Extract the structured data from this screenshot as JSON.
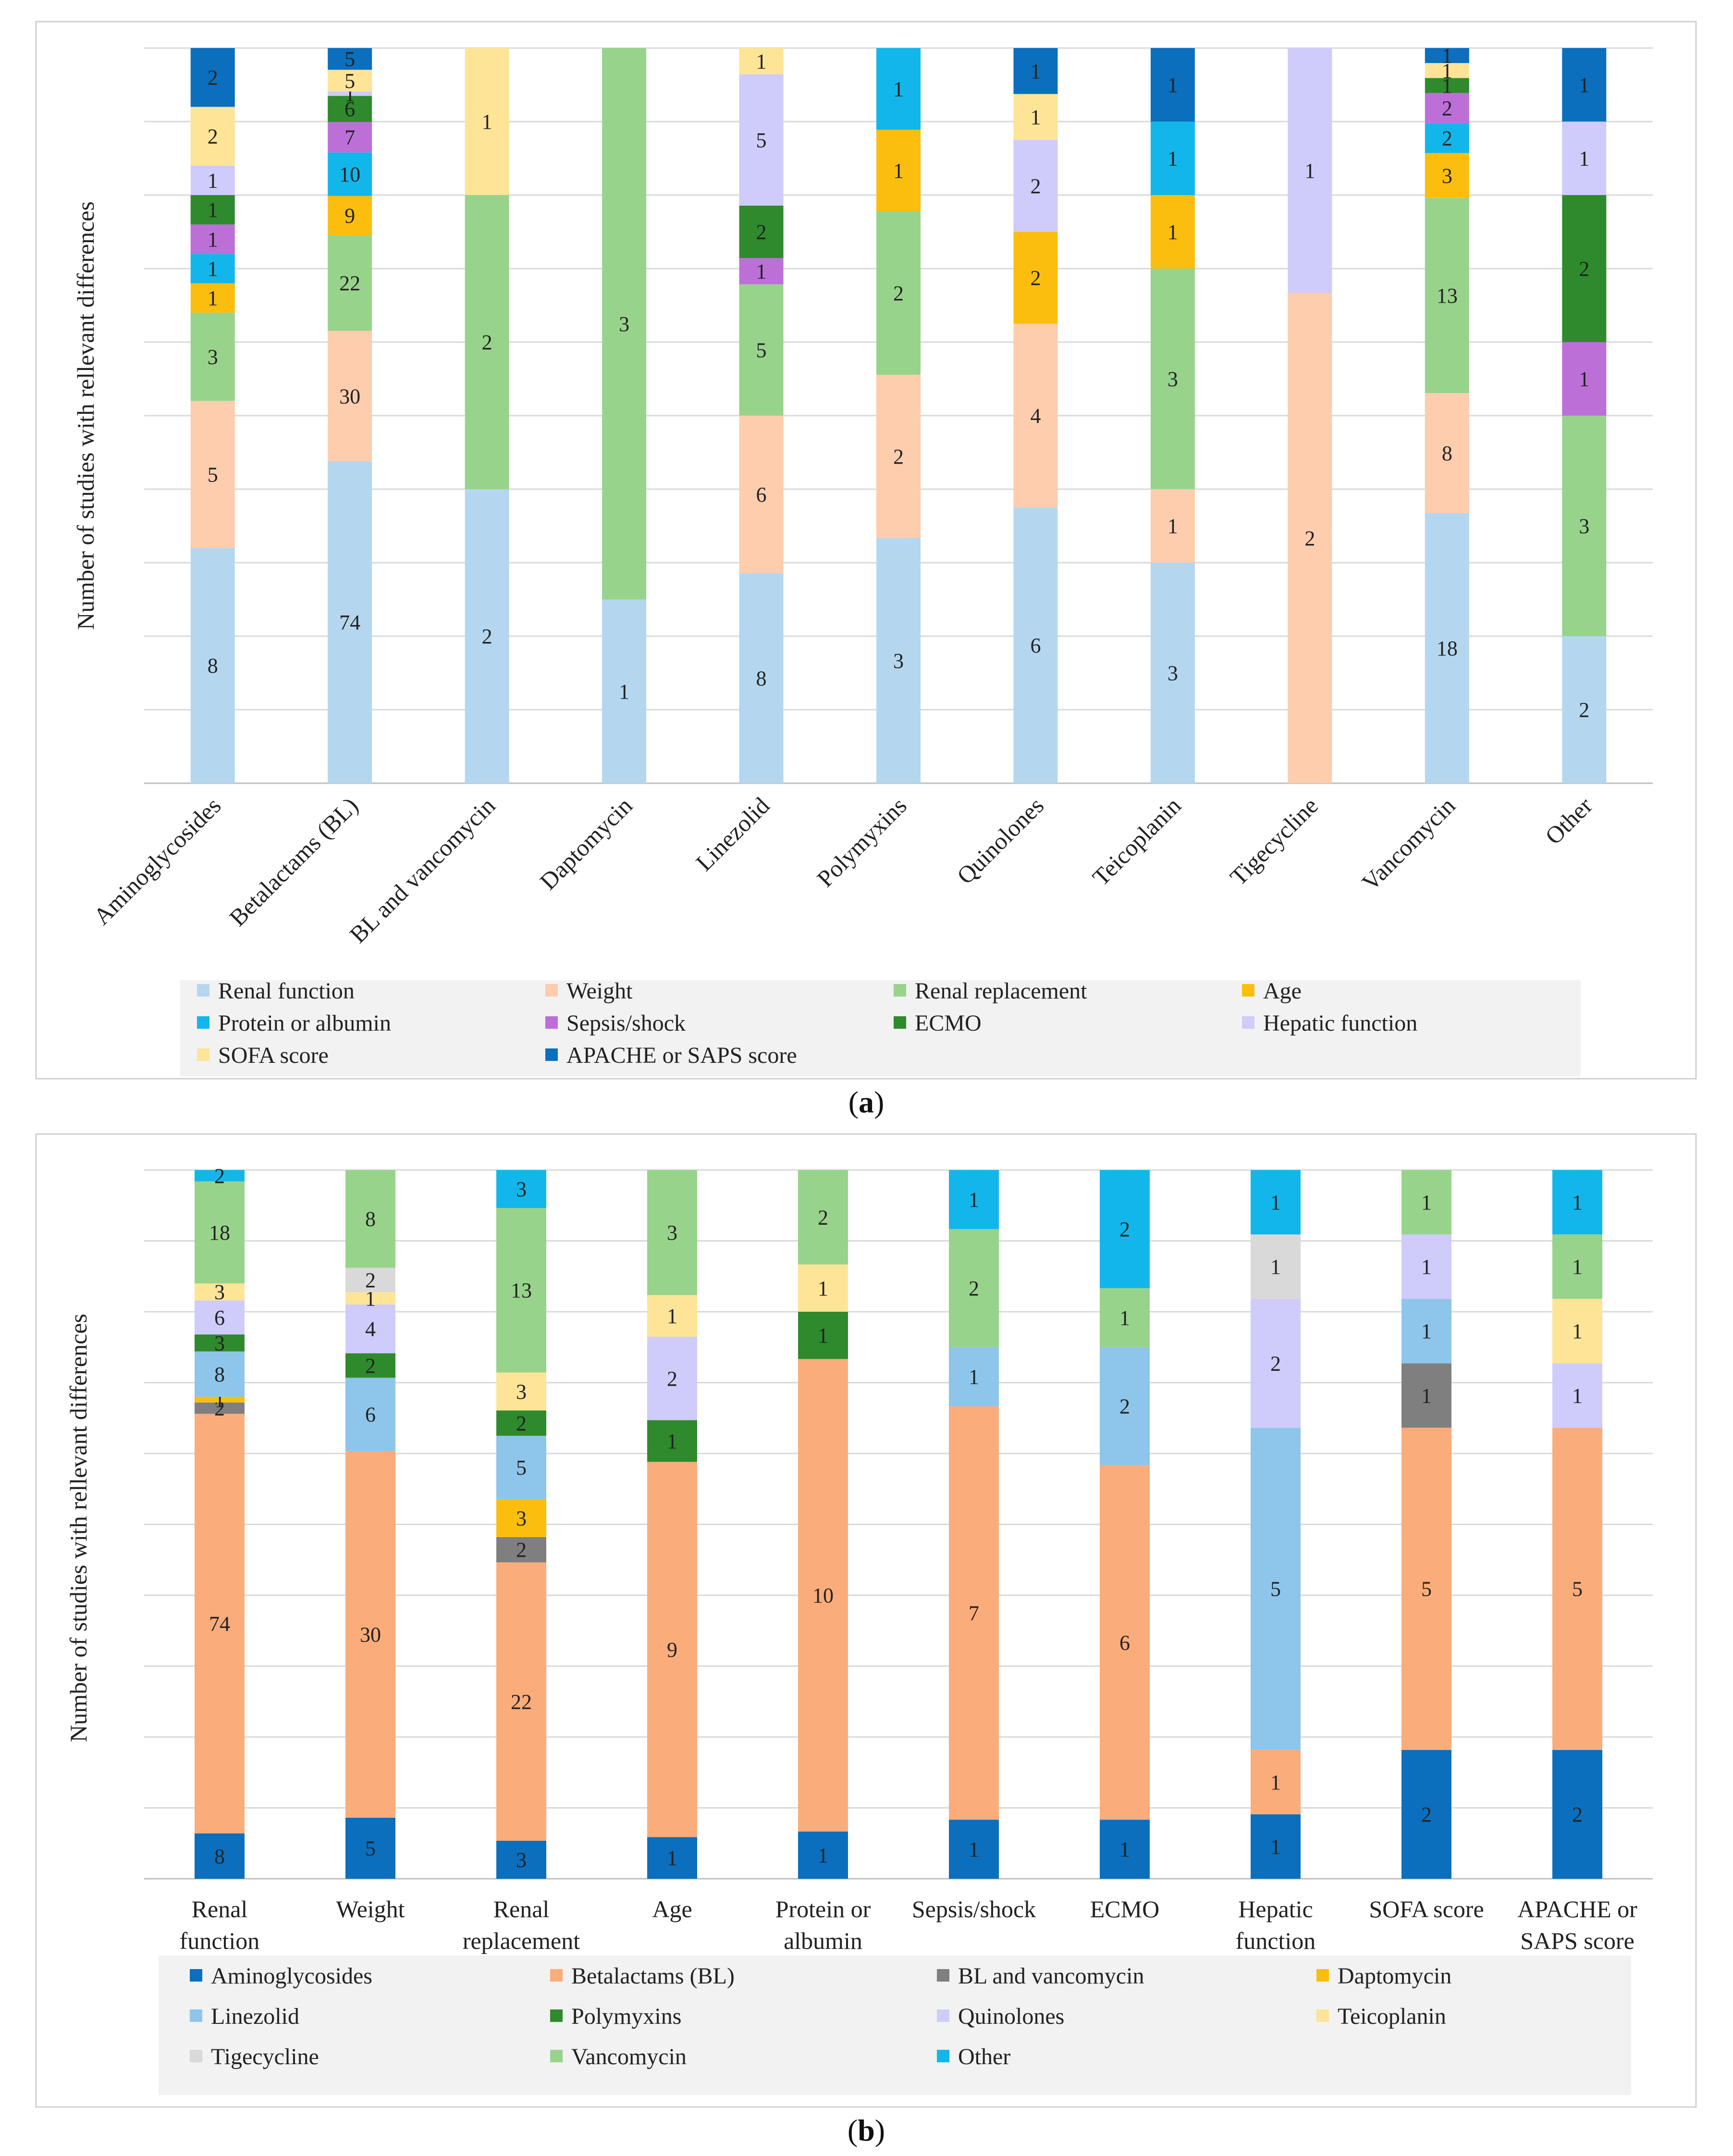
{
  "panels": [
    {
      "label_open": "(",
      "label_letter": "a",
      "label_close": ")"
    },
    {
      "label_open": "(",
      "label_letter": "b",
      "label_close": ")"
    }
  ],
  "chart_data": [
    {
      "type": "bar",
      "stacked": true,
      "percent": true,
      "title": "",
      "ylabel": "Number of studies with rellevant differences",
      "xlabel": "",
      "grid": true,
      "legend_position": "bottom",
      "categories": [
        "Aminoglycosides",
        "Betalactams (BL)",
        "BL and vancomycin",
        "Daptomycin",
        "Linezolid",
        "Polymyxins",
        "Quinolones",
        "Teicoplanin",
        "Tigecycline",
        "Vancomycin",
        "Other"
      ],
      "series": [
        {
          "name": "Renal function",
          "color": "#b4d7ef",
          "values": [
            8,
            74,
            2,
            1,
            8,
            3,
            6,
            3,
            0,
            18,
            2
          ]
        },
        {
          "name": "Weight",
          "color": "#fdcdae",
          "values": [
            5,
            30,
            0,
            0,
            6,
            2,
            4,
            1,
            2,
            8,
            0
          ]
        },
        {
          "name": "Renal replacement",
          "color": "#98d38b",
          "values": [
            3,
            22,
            2,
            3,
            5,
            2,
            0,
            3,
            0,
            13,
            3
          ]
        },
        {
          "name": "Age",
          "color": "#fbbe0f",
          "values": [
            1,
            9,
            0,
            0,
            0,
            1,
            2,
            1,
            0,
            3,
            0
          ]
        },
        {
          "name": "Protein or albumin",
          "color": "#13b6ea",
          "values": [
            1,
            10,
            0,
            0,
            0,
            1,
            0,
            1,
            0,
            2,
            0
          ]
        },
        {
          "name": "Sepsis/shock",
          "color": "#bd6fd8",
          "values": [
            1,
            7,
            0,
            0,
            1,
            0,
            0,
            0,
            0,
            2,
            1
          ]
        },
        {
          "name": "ECMO",
          "color": "#2e8a2c",
          "values": [
            1,
            6,
            0,
            0,
            2,
            0,
            0,
            0,
            0,
            1,
            2
          ]
        },
        {
          "name": "Hepatic function",
          "color": "#cfcbfa",
          "values": [
            1,
            1,
            0,
            0,
            5,
            0,
            2,
            0,
            1,
            0,
            1
          ]
        },
        {
          "name": "SOFA score",
          "color": "#fde497",
          "values": [
            2,
            5,
            1,
            0,
            1,
            0,
            1,
            0,
            0,
            1,
            0
          ]
        },
        {
          "name": "APACHE or SAPS score",
          "color": "#0b6fbe",
          "values": [
            2,
            5,
            0,
            0,
            0,
            0,
            1,
            1,
            0,
            1,
            1
          ]
        }
      ]
    },
    {
      "type": "bar",
      "stacked": true,
      "percent": true,
      "title": "",
      "ylabel": "Number of studies with rellevant differences",
      "xlabel": "",
      "grid": true,
      "legend_position": "bottom",
      "categories": [
        [
          "Renal",
          "function"
        ],
        [
          "Weight"
        ],
        [
          "Renal",
          "replacement"
        ],
        [
          "Age"
        ],
        [
          "Protein or",
          "albumin"
        ],
        [
          "Sepsis/shock"
        ],
        [
          "ECMO"
        ],
        [
          "Hepatic",
          "function"
        ],
        [
          "SOFA score"
        ],
        [
          "APACHE or",
          "SAPS score"
        ]
      ],
      "series": [
        {
          "name": "Aminoglycosides",
          "color": "#0b6fbe",
          "values": [
            8,
            5,
            3,
            1,
            1,
            1,
            1,
            1,
            2,
            2
          ]
        },
        {
          "name": "Betalactams (BL)",
          "color": "#fbac7b",
          "values": [
            74,
            30,
            22,
            9,
            10,
            7,
            6,
            1,
            5,
            5
          ]
        },
        {
          "name": "BL and vancomycin",
          "color": "#7f7f7f",
          "values": [
            2,
            0,
            2,
            0,
            0,
            0,
            0,
            0,
            1,
            0
          ]
        },
        {
          "name": "Daptomycin",
          "color": "#fbbe0f",
          "values": [
            1,
            0,
            3,
            0,
            0,
            0,
            0,
            0,
            0,
            0
          ]
        },
        {
          "name": "Linezolid",
          "color": "#8ec5ea",
          "values": [
            8,
            6,
            5,
            0,
            0,
            1,
            2,
            5,
            1,
            0
          ]
        },
        {
          "name": "Polymyxins",
          "color": "#2e8a2c",
          "values": [
            3,
            2,
            2,
            1,
            1,
            0,
            0,
            0,
            0,
            0
          ]
        },
        {
          "name": "Quinolones",
          "color": "#cfcbfa",
          "values": [
            6,
            4,
            0,
            2,
            0,
            0,
            0,
            2,
            1,
            1
          ]
        },
        {
          "name": "Teicoplanin",
          "color": "#fde497",
          "values": [
            3,
            1,
            3,
            1,
            1,
            0,
            0,
            0,
            0,
            1
          ]
        },
        {
          "name": "Tigecycline",
          "color": "#d9d9d9",
          "values": [
            0,
            2,
            0,
            0,
            0,
            0,
            0,
            1,
            0,
            0
          ]
        },
        {
          "name": "Vancomycin",
          "color": "#98d38b",
          "values": [
            18,
            8,
            13,
            3,
            2,
            2,
            1,
            0,
            1,
            1
          ]
        },
        {
          "name": "Other",
          "color": "#13b6ea",
          "values": [
            2,
            0,
            3,
            0,
            0,
            1,
            2,
            1,
            0,
            1
          ]
        }
      ]
    }
  ]
}
